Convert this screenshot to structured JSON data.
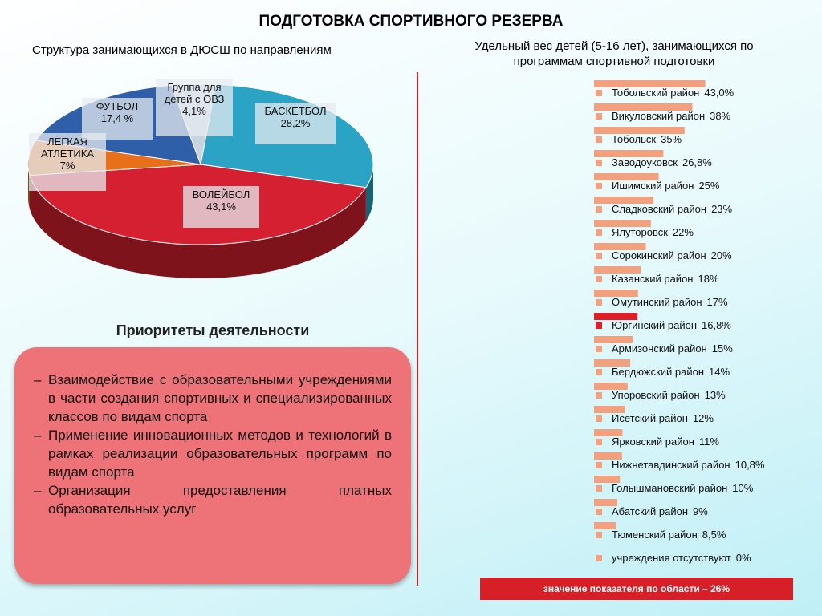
{
  "header": {
    "title": "ПОДГОТОВКА СПОРТИВНОГО РЕЗЕРВА"
  },
  "chart_data": [
    {
      "type": "pie",
      "title": "Структура занимающихся в ДЮСШ по направлениям",
      "categories": [
        "БАСКЕТБОЛ",
        "ВОЛЕЙБОЛ",
        "ЛЕГКАЯ АТЛЕТИКА",
        "ФУТБОЛ",
        "Группа для детей с ОВЗ"
      ],
      "values": [
        28.2,
        43.1,
        7,
        17.4,
        4.1
      ],
      "value_labels": [
        "28,2%",
        "43,1%",
        "7%",
        "17,4 %",
        "4,1%"
      ],
      "colors": [
        "#2aa3c4",
        "#d42030",
        "#e8701a",
        "#2e5fa8",
        "#c9d4e0"
      ]
    },
    {
      "type": "hbar",
      "title": "Удельный вес детей (5-16 лет), занимающихся по программам спортивной подготовки",
      "categories": [
        "Тобольский район",
        "Викуловский район",
        "Тобольск",
        "Заводоуковск",
        "Ишимский район",
        "Сладковский район",
        "Ялуторовск",
        "Сорокинский район",
        "Казанский район",
        "Омутинский район",
        "Юргинский район",
        "Армизонский район",
        "Бердюжский район",
        "Упоровский район",
        "Исетский район",
        "Ярковский район",
        "Нижнетавдинский район",
        "Голышмановский район",
        "Абатский район",
        "Тюменский район",
        "учреждения отсутствуют"
      ],
      "values": [
        43.0,
        38,
        35,
        26.8,
        25,
        23,
        22,
        20,
        18,
        17,
        16.8,
        15,
        14,
        13,
        12,
        11,
        10.8,
        10,
        9,
        8.5,
        0
      ],
      "value_labels": [
        "43,0%",
        "38%",
        "35%",
        "26,8%",
        "25%",
        "23%",
        "22%",
        "20%",
        "18%",
        "17%",
        "16,8%",
        "15%",
        "14%",
        "13%",
        "12%",
        "11%",
        "10,8%",
        "10%",
        "9%",
        "8,5%",
        "0%"
      ],
      "color": "#f2a07e",
      "highlight_color": "#e01e28",
      "highlight": 10,
      "xlim": [
        0,
        45
      ],
      "note": "значение показателя  по области – 26%"
    }
  ],
  "priorities": {
    "title": "Приоритеты деятельности",
    "items": [
      "Взаимодействие с образовательными учреждениями в части создания спортивных и специализированных классов по видам спорта",
      "Применение инновационных методов и технологий в рамках реализации образовательных программ по видам спорта",
      "Организация предоставления платных образовательных услуг"
    ]
  }
}
